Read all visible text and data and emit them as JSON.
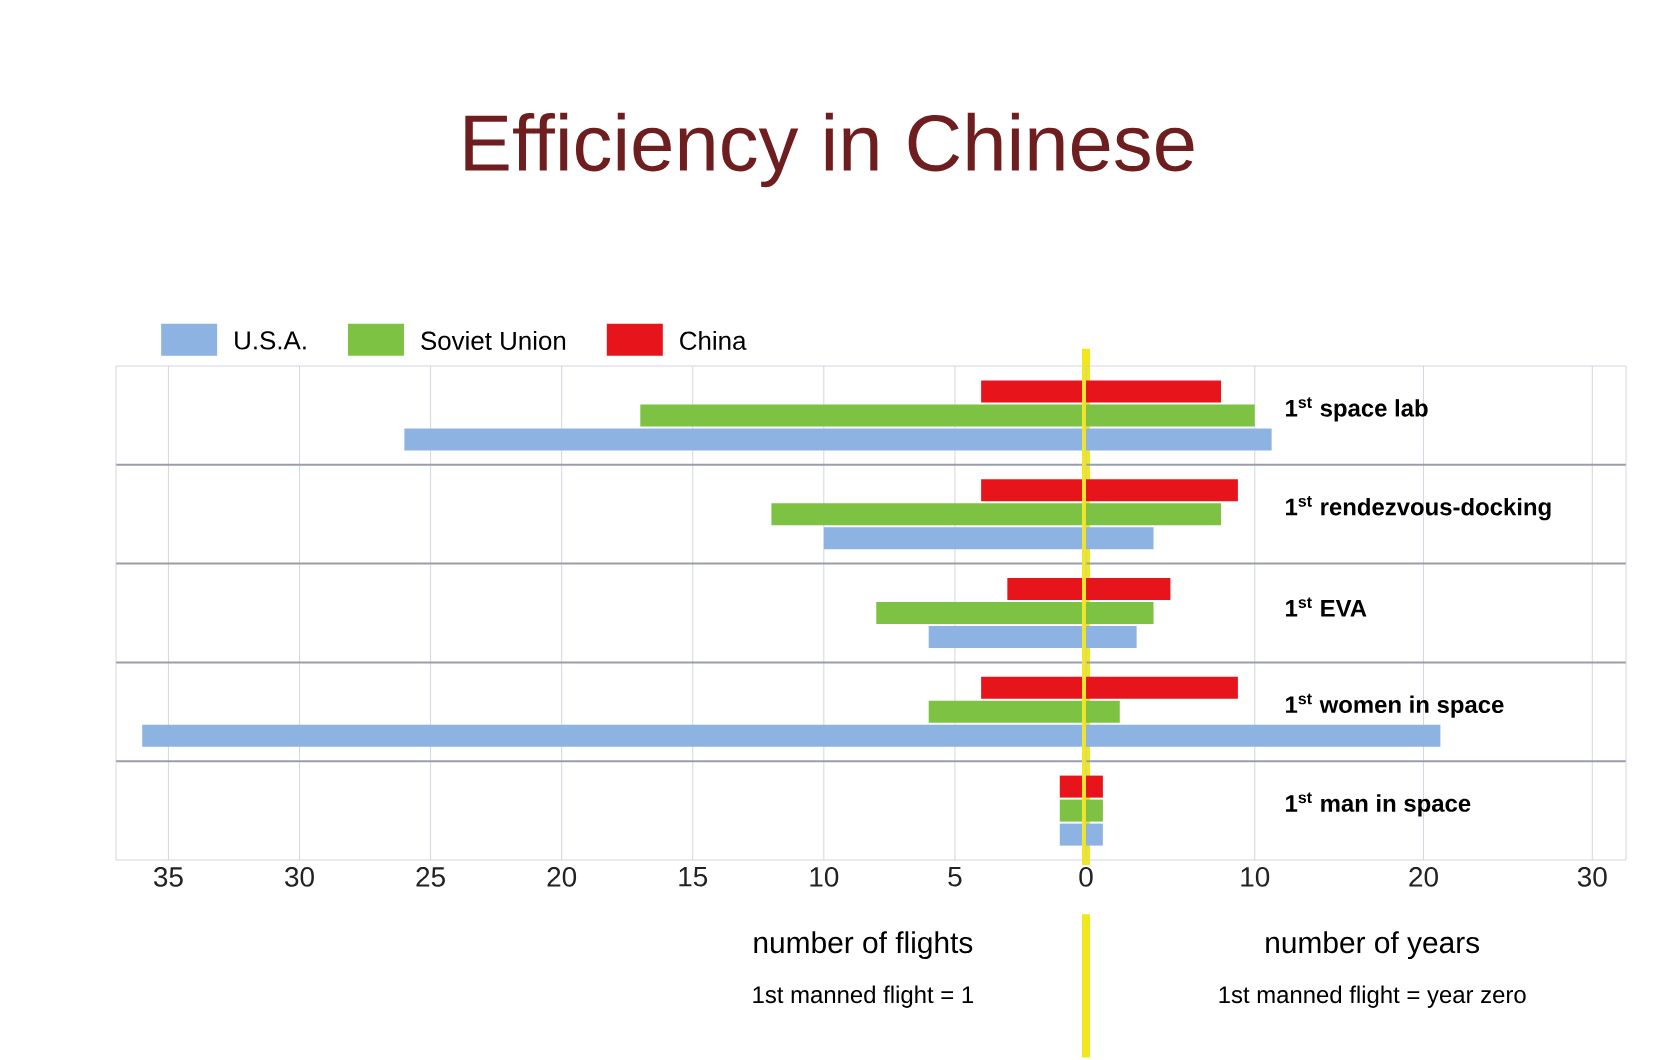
{
  "chart_data": [
    {
      "type": "bar",
      "orientation": "horizontal",
      "title": "Efficiency in Chinese",
      "xlabel": "number of flights",
      "annotations": [
        "1st manned flight = 1"
      ],
      "categories": [
        null,
        null,
        null,
        null,
        null
      ],
      "series": [
        {
          "name": "U.S.A.",
          "color": "#8db3e2",
          "values": [
            26,
            10,
            6,
            36,
            1
          ]
        },
        {
          "name": "Soviet Union",
          "color": "#7dc242",
          "values": [
            17,
            12,
            8,
            6,
            1
          ]
        },
        {
          "name": "China",
          "color": "#e8141b",
          "values": [
            4,
            4,
            3,
            4,
            1
          ]
        }
      ],
      "xlim": [
        37,
        0
      ],
      "xticks": [
        35,
        30,
        25,
        20,
        15,
        10,
        5,
        0
      ],
      "grid": "x",
      "legend": "top left",
      "tick_labels": "x",
      "ref_lines": [
        {
          "axis": "x",
          "value": 0,
          "color": "#f2e61c"
        }
      ]
    },
    {
      "type": "bar",
      "orientation": "horizontal",
      "xlabel": "number of years",
      "annotations": [
        "1st manned flight = year zero"
      ],
      "categories": [
        "1$^{st}$ space lab",
        "1$^{st}$ rendezvous-docking",
        "1$^{st}$ EVA",
        "1$^{st}$ women in space",
        "1$^{st}$ man in space"
      ],
      "series": [
        {
          "color": "#8db3e2",
          "values": [
            11,
            4,
            3,
            21,
            1
          ]
        },
        {
          "color": "#7dc242",
          "values": [
            10,
            8,
            4,
            2,
            1
          ]
        },
        {
          "color": "#e8141b",
          "values": [
            8,
            9,
            5,
            9,
            1
          ]
        }
      ],
      "xlim": [
        0,
        32
      ],
      "xticks": [
        10,
        20,
        30
      ],
      "grid": "x"
    }
  ]
}
